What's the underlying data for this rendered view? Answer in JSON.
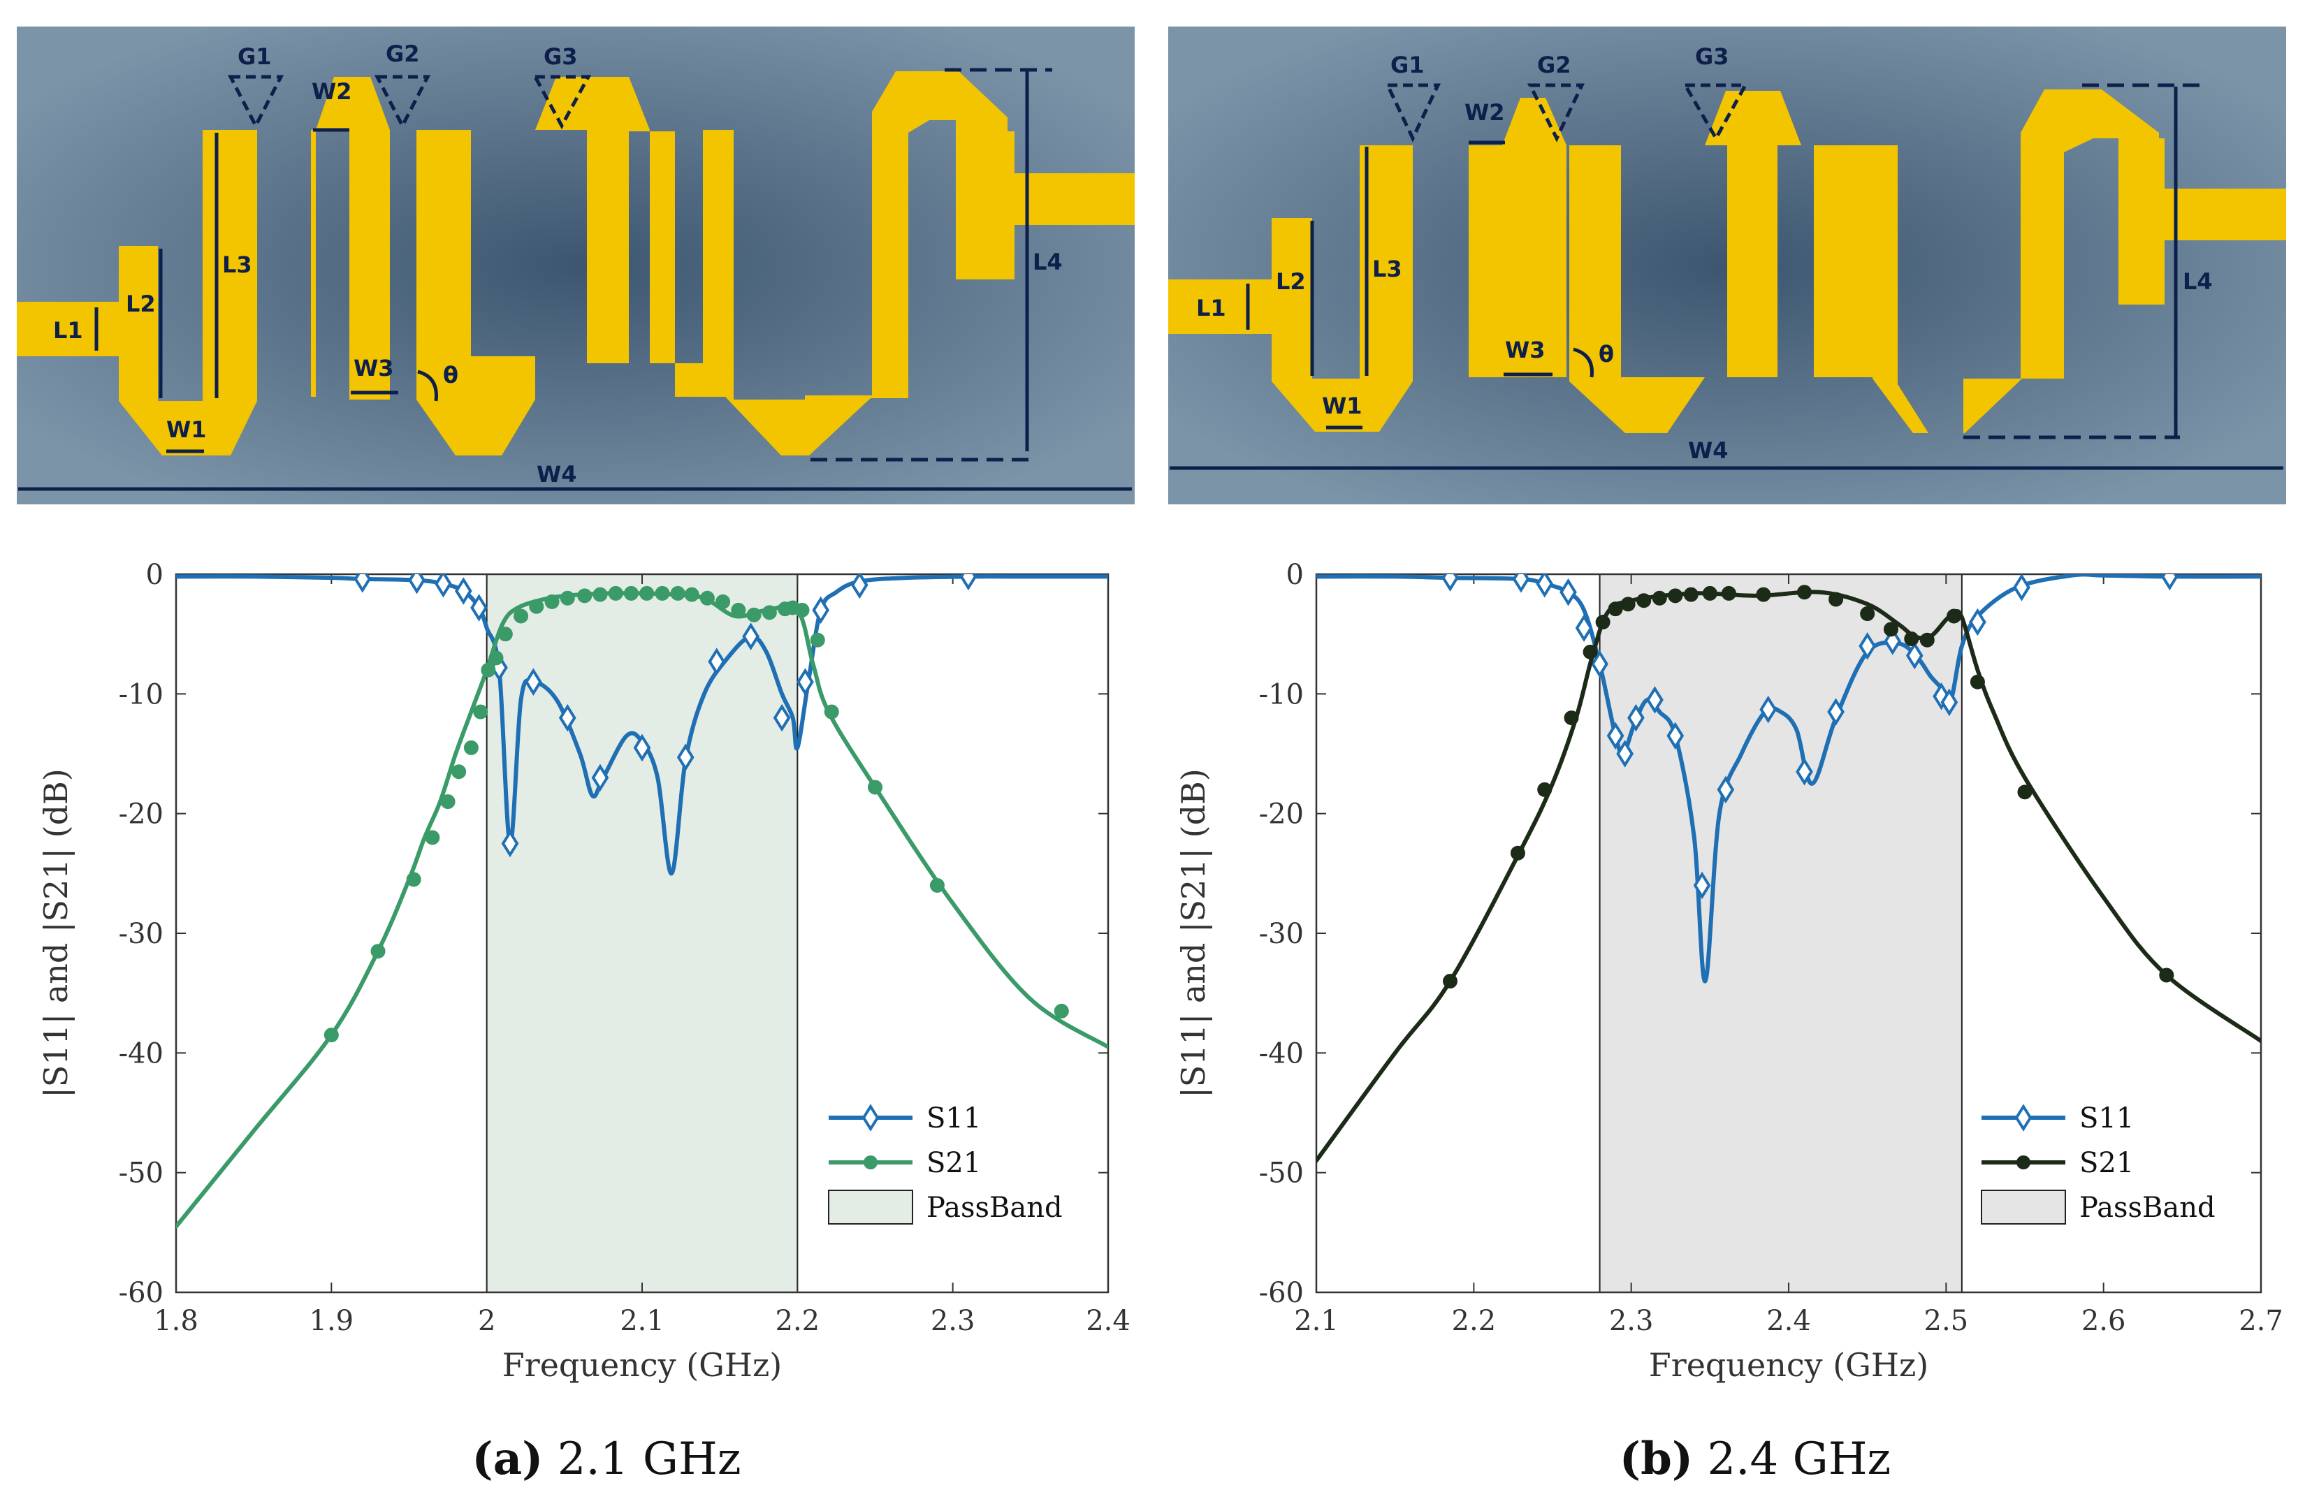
{
  "captions": [
    {
      "letter": "(a)",
      "text": " 2.1 GHz"
    },
    {
      "letter": "(b)",
      "text": " 2.4 GHz"
    }
  ],
  "layout_labels": {
    "gaps": [
      "G1",
      "G2",
      "G3"
    ],
    "widths": [
      "W1",
      "W2",
      "W3",
      "W4"
    ],
    "lengths": [
      "L1",
      "L2",
      "L3",
      "L4"
    ],
    "angle": "θ"
  },
  "colors": {
    "substrate": "#6f8aa0",
    "copper": "#f2c500",
    "dim_line": "#0d1f4a",
    "s11": "#1f6fb4",
    "s21_a": "#3a9a68",
    "s21_b": "#1c2a18",
    "band_a": "#e4ece6",
    "band_b": "#e5e5e5"
  },
  "chart_data": [
    {
      "type": "line",
      "xlabel": "Frequency (GHz)",
      "ylabel": "|S11| and |S21| (dB)",
      "xlim": [
        1.8,
        2.4
      ],
      "ylim": [
        -60,
        0
      ],
      "xticks": [
        "1.8",
        "1.9",
        "2",
        "2.1",
        "2.2",
        "2.3",
        "2.4"
      ],
      "yticks": [
        "0",
        "-10",
        "-20",
        "-30",
        "-40",
        "-50",
        "-60"
      ],
      "passband": [
        2.0,
        2.2
      ],
      "legend": [
        "S11",
        "S21",
        "PassBand"
      ],
      "legend_position": "bottom-right",
      "series": [
        {
          "name": "S11",
          "marker": "diamond",
          "x": [
            1.8,
            1.85,
            1.9,
            1.92,
            1.955,
            1.972,
            1.985,
            1.995,
            2.0,
            2.008,
            2.015,
            2.022,
            2.03,
            2.045,
            2.06,
            2.068,
            2.075,
            2.09,
            2.1,
            2.11,
            2.119,
            2.128,
            2.14,
            2.155,
            2.17,
            2.18,
            2.19,
            2.197,
            2.2,
            2.207,
            2.215,
            2.225,
            2.24,
            2.27,
            2.31,
            2.35,
            2.4
          ],
          "y": [
            -0.2,
            -0.2,
            -0.3,
            -0.4,
            -0.5,
            -0.8,
            -1.4,
            -2.8,
            -4.5,
            -8,
            -22.5,
            -10.5,
            -9,
            -10.5,
            -15,
            -18.5,
            -17,
            -13.5,
            -14,
            -17,
            -25,
            -15.5,
            -10,
            -7,
            -5.2,
            -6.5,
            -10,
            -12,
            -14.5,
            -9,
            -3,
            -1.5,
            -0.6,
            -0.3,
            -0.2,
            -0.2,
            -0.2
          ],
          "markers_x": [
            1.92,
            1.955,
            1.972,
            1.985,
            1.995,
            2.008,
            2.015,
            2.03,
            2.052,
            2.073,
            2.1,
            2.128,
            2.148,
            2.17,
            2.19,
            2.205,
            2.215,
            2.24,
            2.31
          ],
          "markers_y": [
            -0.4,
            -0.5,
            -0.8,
            -1.4,
            -2.8,
            -7.8,
            -22.5,
            -9,
            -12,
            -17,
            -14.5,
            -15.3,
            -7.3,
            -5.2,
            -12,
            -9,
            -3,
            -0.9,
            -0.2
          ]
        },
        {
          "name": "S21",
          "marker": "circle",
          "x": [
            1.8,
            1.85,
            1.9,
            1.93,
            1.95,
            1.96,
            1.97,
            1.98,
            1.99,
            2.0,
            2.01,
            2.02,
            2.04,
            2.06,
            2.08,
            2.1,
            2.12,
            2.14,
            2.16,
            2.18,
            2.2,
            2.21,
            2.22,
            2.25,
            2.3,
            2.35,
            2.4
          ],
          "y": [
            -54.5,
            -46.5,
            -38.5,
            -31.5,
            -25.5,
            -22,
            -19,
            -15,
            -11.5,
            -8,
            -4.2,
            -2.8,
            -2,
            -1.7,
            -1.6,
            -1.6,
            -1.7,
            -2,
            -3.5,
            -3,
            -3,
            -7.5,
            -11.5,
            -17.8,
            -27.5,
            -35.5,
            -39.5
          ],
          "markers_x": [
            1.9,
            1.93,
            1.953,
            1.965,
            1.975,
            1.982,
            1.99,
            1.996,
            2.001,
            2.006,
            2.012,
            2.022,
            2.032,
            2.042,
            2.052,
            2.063,
            2.073,
            2.083,
            2.093,
            2.103,
            2.113,
            2.123,
            2.132,
            2.142,
            2.152,
            2.162,
            2.172,
            2.182,
            2.192,
            2.197,
            2.203,
            2.213,
            2.222,
            2.25,
            2.29,
            2.37
          ],
          "markers_y": [
            -38.5,
            -31.5,
            -25.5,
            -22,
            -19,
            -16.5,
            -14.5,
            -11.5,
            -8,
            -7,
            -5,
            -3.5,
            -2.7,
            -2.3,
            -2,
            -1.8,
            -1.7,
            -1.6,
            -1.6,
            -1.6,
            -1.6,
            -1.6,
            -1.7,
            -2,
            -2.3,
            -3,
            -3.4,
            -3.2,
            -2.9,
            -2.8,
            -3,
            -5.5,
            -11.5,
            -17.8,
            -26,
            -36.5
          ]
        }
      ]
    },
    {
      "type": "line",
      "xlabel": "Frequency (GHz)",
      "ylabel": "|S11| and |S21| (dB)",
      "xlim": [
        2.1,
        2.7
      ],
      "ylim": [
        -60,
        0
      ],
      "xticks": [
        "2.1",
        "2.2",
        "2.3",
        "2.4",
        "2.5",
        "2.6",
        "2.7"
      ],
      "yticks": [
        "0",
        "-10",
        "-20",
        "-30",
        "-40",
        "-50",
        "-60"
      ],
      "passband": [
        2.28,
        2.51
      ],
      "legend": [
        "S11",
        "S21",
        "PassBand"
      ],
      "legend_position": "bottom-right",
      "series": [
        {
          "name": "S11",
          "marker": "diamond",
          "x": [
            2.1,
            2.15,
            2.185,
            2.23,
            2.245,
            2.26,
            2.27,
            2.28,
            2.29,
            2.295,
            2.302,
            2.31,
            2.318,
            2.328,
            2.34,
            2.347,
            2.356,
            2.37,
            2.385,
            2.395,
            2.405,
            2.415,
            2.43,
            2.45,
            2.47,
            2.482,
            2.49,
            2.497,
            2.503,
            2.51,
            2.52,
            2.545,
            2.58,
            2.6,
            2.64,
            2.7
          ],
          "y": [
            -0.2,
            -0.2,
            -0.3,
            -0.4,
            -0.8,
            -1.5,
            -3,
            -7.5,
            -13.5,
            -15,
            -12.5,
            -10.5,
            -11.5,
            -13.5,
            -22,
            -34,
            -20,
            -15,
            -11.5,
            -11.5,
            -13,
            -17.5,
            -12,
            -6.5,
            -5.8,
            -7,
            -8.5,
            -9.5,
            -10.5,
            -6,
            -3.5,
            -1.1,
            -0.1,
            -0.1,
            -0.2,
            -0.2
          ],
          "markers_x": [
            2.185,
            2.23,
            2.245,
            2.26,
            2.27,
            2.28,
            2.29,
            2.296,
            2.303,
            2.315,
            2.328,
            2.345,
            2.36,
            2.387,
            2.41,
            2.43,
            2.45,
            2.466,
            2.48,
            2.497,
            2.502,
            2.52,
            2.548,
            2.642
          ],
          "markers_y": [
            -0.3,
            -0.4,
            -0.8,
            -1.5,
            -4.5,
            -7.5,
            -13.5,
            -15,
            -12,
            -10.5,
            -13.5,
            -26,
            -18,
            -11.3,
            -16.5,
            -11.5,
            -6,
            -5.6,
            -6.8,
            -10.2,
            -10.7,
            -4,
            -1.1,
            -0.2
          ]
        },
        {
          "name": "S21",
          "marker": "circle",
          "x": [
            2.1,
            2.15,
            2.185,
            2.23,
            2.25,
            2.265,
            2.275,
            2.285,
            2.3,
            2.34,
            2.38,
            2.42,
            2.45,
            2.47,
            2.48,
            2.49,
            2.5,
            2.505,
            2.51,
            2.52,
            2.53,
            2.55,
            2.6,
            2.64,
            2.7
          ],
          "y": [
            -49,
            -40,
            -34,
            -23,
            -17.5,
            -12,
            -7,
            -3.2,
            -2.2,
            -1.6,
            -1.8,
            -1.5,
            -2.5,
            -4.2,
            -5.2,
            -5.2,
            -3.8,
            -3.2,
            -3.6,
            -8,
            -11.5,
            -17,
            -27,
            -33.5,
            -39
          ],
          "markers_x": [
            2.185,
            2.228,
            2.245,
            2.262,
            2.274,
            2.282,
            2.29,
            2.298,
            2.308,
            2.318,
            2.328,
            2.338,
            2.35,
            2.362,
            2.384,
            2.41,
            2.43,
            2.45,
            2.465,
            2.478,
            2.488,
            2.505,
            2.52,
            2.55,
            2.64
          ],
          "markers_y": [
            -34,
            -23.3,
            -18,
            -12,
            -6.5,
            -4,
            -2.9,
            -2.5,
            -2.2,
            -2,
            -1.8,
            -1.7,
            -1.6,
            -1.6,
            -1.7,
            -1.5,
            -2.1,
            -3.3,
            -4.6,
            -5.4,
            -5.5,
            -3.5,
            -9,
            -18.2,
            -33.5
          ]
        }
      ]
    }
  ]
}
